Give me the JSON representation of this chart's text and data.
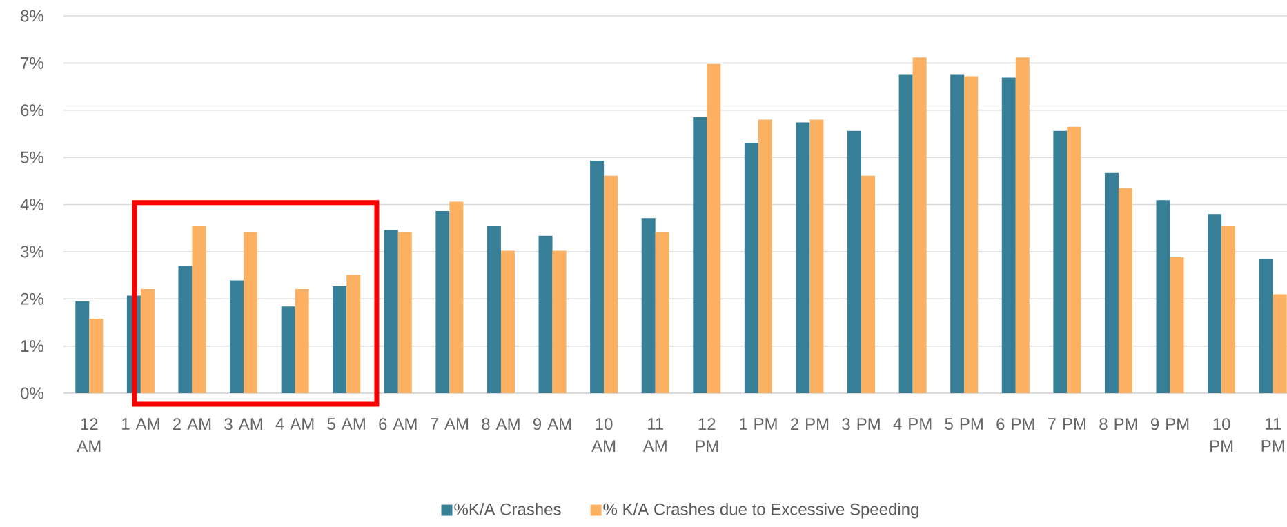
{
  "chart_data": {
    "type": "bar",
    "categories": [
      "12 AM",
      "1 AM",
      "2 AM",
      "3 AM",
      "4 AM",
      "5 AM",
      "6 AM",
      "7 AM",
      "8 AM",
      "9 AM",
      "10 AM",
      "11 AM",
      "12 PM",
      "1 PM",
      "2 PM",
      "3 PM",
      "4 PM",
      "5 PM",
      "6 PM",
      "7 PM",
      "8 PM",
      "9 PM",
      "10 PM",
      "11 PM"
    ],
    "series": [
      {
        "name": "%K/A Crashes",
        "color": "#367f97",
        "values": [
          1.95,
          2.07,
          2.7,
          2.39,
          1.84,
          2.27,
          3.46,
          3.86,
          3.54,
          3.34,
          4.93,
          3.71,
          5.85,
          5.31,
          5.74,
          5.56,
          6.75,
          6.75,
          6.69,
          5.56,
          4.67,
          4.09,
          3.8,
          2.84
        ]
      },
      {
        "name": "% K/A Crashes due to Excessive Speeding",
        "color": "#fbb062",
        "values": [
          1.58,
          2.21,
          3.54,
          3.42,
          2.21,
          2.51,
          3.42,
          4.06,
          3.02,
          3.02,
          4.61,
          3.42,
          6.98,
          5.8,
          5.8,
          4.61,
          7.12,
          6.72,
          7.12,
          5.65,
          4.35,
          2.88,
          3.54,
          2.1
        ]
      }
    ],
    "ylim": [
      0,
      8
    ],
    "yticks": [
      {
        "value": 0,
        "label": "0%"
      },
      {
        "value": 1,
        "label": "1%"
      },
      {
        "value": 2,
        "label": "2%"
      },
      {
        "value": 3,
        "label": "3%"
      },
      {
        "value": 4,
        "label": "4%"
      },
      {
        "value": 5,
        "label": "5%"
      },
      {
        "value": 6,
        "label": "6%"
      },
      {
        "value": 7,
        "label": "7%"
      },
      {
        "value": 8,
        "label": "8%"
      }
    ],
    "grid": "y",
    "legend": "bottom"
  }
}
